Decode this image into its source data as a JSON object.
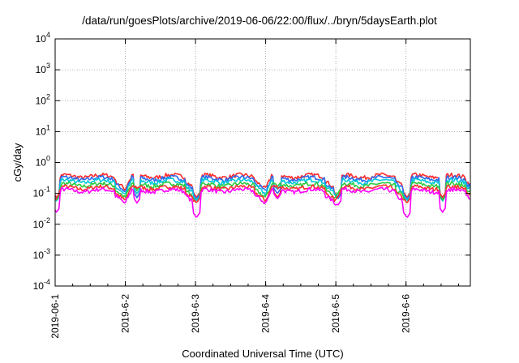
{
  "page": {
    "title": "/data/run/goesPlots/archive/2019-06-06/22:00/flux/../bryn/5daysEarth.plot"
  },
  "chart_data": {
    "type": "line",
    "title": "/data/run/goesPlots/archive/2019-06-06/22:00/flux/../bryn/5daysEarth.plot",
    "xlabel": "Coordinated Universal Time (UTC)",
    "ylabel": "cGy/day",
    "yscale": "log",
    "ylim": [
      0.0001,
      10000
    ],
    "y_ticks": [
      {
        "base": "10",
        "exp": "4",
        "value": 10000
      },
      {
        "base": "10",
        "exp": "3",
        "value": 1000
      },
      {
        "base": "10",
        "exp": "2",
        "value": 100
      },
      {
        "base": "10",
        "exp": "1",
        "value": 10
      },
      {
        "base": "10",
        "exp": "0",
        "value": 1
      },
      {
        "base": "10",
        "exp": "-1",
        "value": 0.1
      },
      {
        "base": "10",
        "exp": "-2",
        "value": 0.01
      },
      {
        "base": "10",
        "exp": "-3",
        "value": 0.001
      },
      {
        "base": "10",
        "exp": "-4",
        "value": 0.0001
      }
    ],
    "xlim": [
      "2019-06-01",
      "2019-06-06 22:00"
    ],
    "x_ticks": [
      {
        "label": "2019-06-1",
        "date": "2019-06-01"
      },
      {
        "label": "2019-6-2",
        "date": "2019-06-02"
      },
      {
        "label": "2019-6-3",
        "date": "2019-06-03"
      },
      {
        "label": "2019-6-4",
        "date": "2019-06-04"
      },
      {
        "label": "2019-6-5",
        "date": "2019-06-05"
      },
      {
        "label": "2019-6-6",
        "date": "2019-06-06"
      }
    ],
    "grid": true,
    "legend": "none",
    "series": [
      {
        "color": "#ff2a2a",
        "base": 0.38,
        "min_dip": 0.09
      },
      {
        "color": "#2b6cf0",
        "base": 0.32,
        "min_dip": 0.08
      },
      {
        "color": "#00c8d8",
        "base": 0.26,
        "min_dip": 0.07
      },
      {
        "color": "#2ecc40",
        "base": 0.2,
        "min_dip": 0.06
      },
      {
        "color": "#ff3030",
        "base": 0.16,
        "min_dip": 0.05
      },
      {
        "color": "#ff00ff",
        "base": 0.13,
        "min_dip": 0.02
      }
    ],
    "pattern": {
      "description_values": "daily cycle: high ~0.3-0.4 from day start, dips ~0.1 near day end; magenta lowest dips ~0.02",
      "dip_days": [
        {
          "date": "2019-06-01 00:30",
          "low": 0.03
        },
        {
          "date": "2019-06-02 04:00",
          "low": 0.06
        },
        {
          "date": "2019-06-03 00:20",
          "low": 0.02
        },
        {
          "date": "2019-06-04 04:00",
          "low": 0.08
        },
        {
          "date": "2019-06-05 00:40",
          "low": 0.05
        },
        {
          "date": "2019-06-06 00:20",
          "low": 0.02
        },
        {
          "date": "2019-06-06 12:30",
          "low": 0.03
        }
      ]
    }
  }
}
